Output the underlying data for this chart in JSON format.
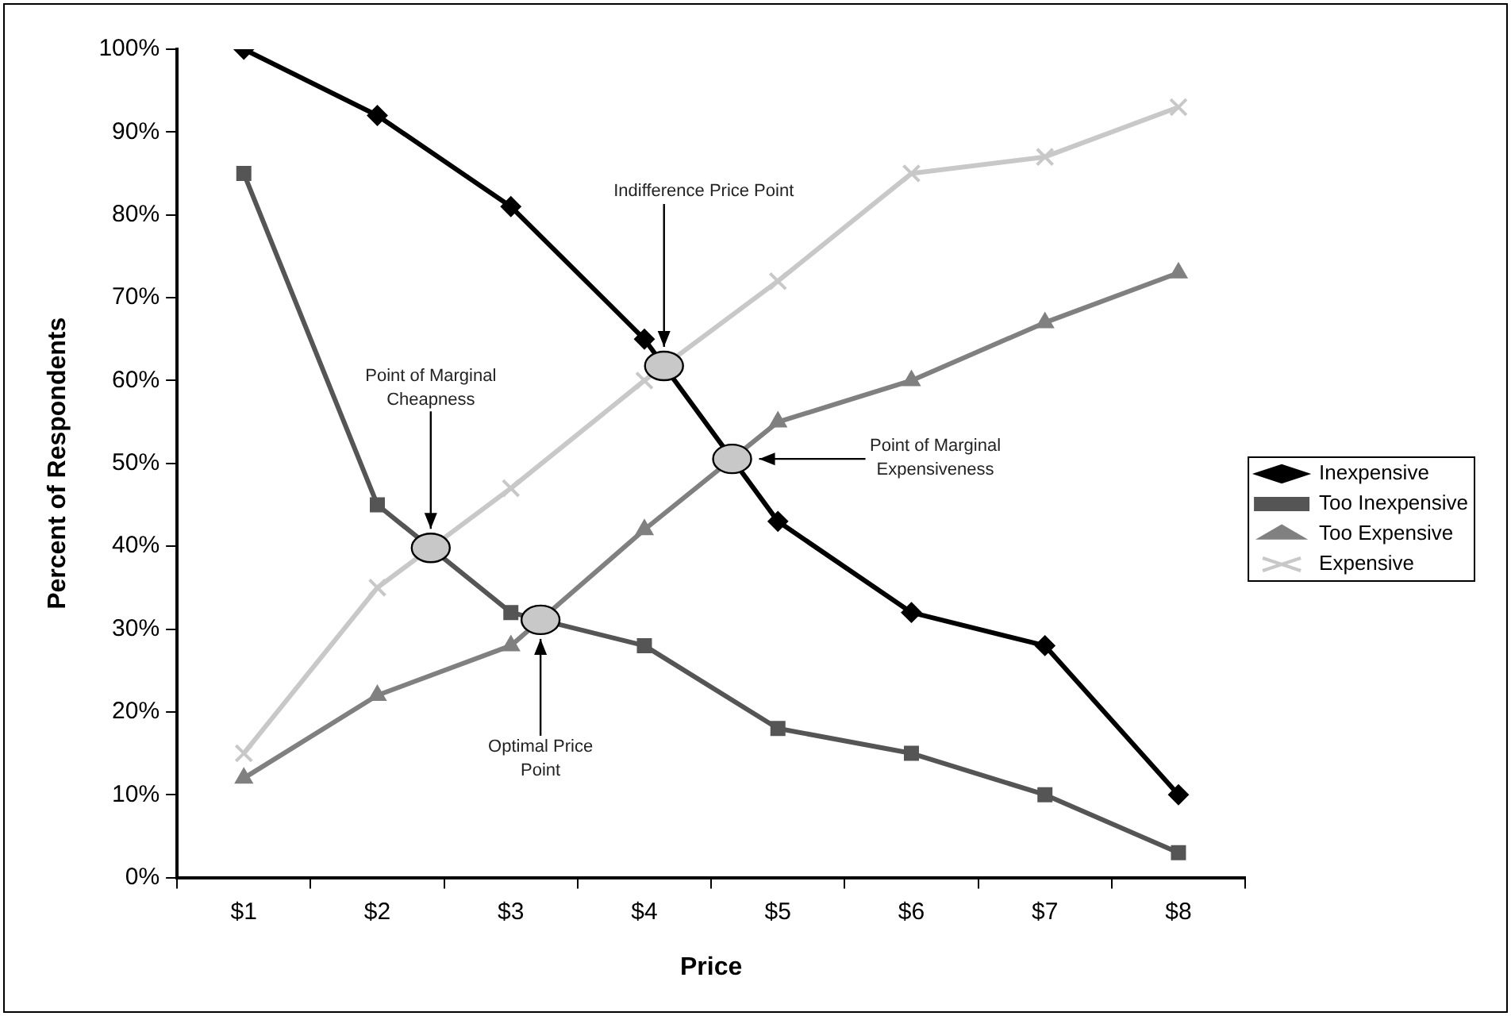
{
  "chart_data": {
    "type": "line",
    "xlabel": "Price",
    "ylabel": "Percent of Respondents",
    "x": [
      1,
      2,
      3,
      4,
      5,
      6,
      7,
      8
    ],
    "series": [
      {
        "name": "Inexpensive",
        "color": "#000000",
        "marker": "diamond",
        "values": [
          100,
          92,
          81,
          65,
          43,
          32,
          28,
          10
        ]
      },
      {
        "name": "Too Inexpensive",
        "color": "#555555",
        "marker": "square",
        "values": [
          85,
          45,
          32,
          28,
          18,
          15,
          10,
          3
        ]
      },
      {
        "name": "Too Expensive",
        "color": "#808080",
        "marker": "triangle",
        "values": [
          12,
          22,
          28,
          42,
          55,
          60,
          67,
          73
        ]
      },
      {
        "name": "Expensive",
        "color": "#c8c8c8",
        "marker": "cross",
        "values": [
          15,
          35,
          47,
          60,
          72,
          85,
          87,
          93
        ]
      }
    ],
    "xlim": [
      0.5,
      8.5
    ],
    "xticks": [
      {
        "value": 0.5,
        "label": null
      },
      {
        "value": 1,
        "label": "$1"
      },
      {
        "value": 1.5,
        "label": null
      },
      {
        "value": 2,
        "label": "$2"
      },
      {
        "value": 2.5,
        "label": null
      },
      {
        "value": 3,
        "label": "$3"
      },
      {
        "value": 3.5,
        "label": null
      },
      {
        "value": 4,
        "label": "$4"
      },
      {
        "value": 4.5,
        "label": null
      },
      {
        "value": 5,
        "label": "$5"
      },
      {
        "value": 5.5,
        "label": null
      },
      {
        "value": 6,
        "label": "$6"
      },
      {
        "value": 6.5,
        "label": null
      },
      {
        "value": 7,
        "label": "$7"
      },
      {
        "value": 7.5,
        "label": null
      },
      {
        "value": 8,
        "label": "$8"
      },
      {
        "value": 8.5,
        "label": null
      }
    ],
    "ylim": [
      0,
      100
    ],
    "yticks": [
      {
        "value": 0,
        "label": "0%"
      },
      {
        "value": 10,
        "label": "10%"
      },
      {
        "value": 20,
        "label": "20%"
      },
      {
        "value": 30,
        "label": "30%"
      },
      {
        "value": 40,
        "label": "40%"
      },
      {
        "value": 50,
        "label": "50%"
      },
      {
        "value": 60,
        "label": "60%"
      },
      {
        "value": 70,
        "label": "70%"
      },
      {
        "value": 80,
        "label": "80%"
      },
      {
        "value": 90,
        "label": "90%"
      },
      {
        "value": 100,
        "label": "100%"
      }
    ],
    "annotations": [
      "Indifference Price Point",
      "Point of Marginal Cheapness",
      "Optimal Price Point",
      "Point of Marginal Expensiveness"
    ],
    "grid": false,
    "legend": "right",
    "line_style": "solid"
  }
}
